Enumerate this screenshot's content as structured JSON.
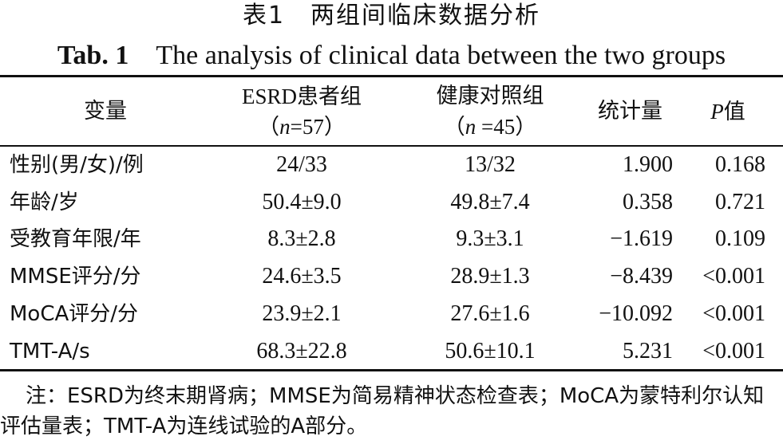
{
  "title": {
    "cn": "表1　两组间临床数据分析",
    "en_label": "Tab. 1",
    "en_text": "The analysis of clinical data between the two groups"
  },
  "headers": {
    "variable": "变量",
    "esrd_line1": "ESRD患者组",
    "esrd_n": "（n=57）",
    "control_line1": "健康对照组",
    "control_n": "（n =45）",
    "statistic": "统计量",
    "p_value": "P值"
  },
  "rows": [
    {
      "variable": "性别(男/女)/例",
      "esrd": "24/33",
      "control": "13/32",
      "statistic": "1.900",
      "p": "0.168"
    },
    {
      "variable": "年龄/岁",
      "esrd": "50.4±9.0",
      "control": "49.8±7.4",
      "statistic": "0.358",
      "p": "0.721"
    },
    {
      "variable": "受教育年限/年",
      "esrd": "8.3±2.8",
      "control": "9.3±3.1",
      "statistic": "−1.619",
      "p": "0.109"
    },
    {
      "variable": "MMSE评分/分",
      "esrd": "24.6±3.5",
      "control": "28.9±1.3",
      "statistic": "−8.439",
      "p": "<0.001"
    },
    {
      "variable": "MoCA评分/分",
      "esrd": "23.9±2.1",
      "control": "27.6±1.6",
      "statistic": "−10.092",
      "p": "<0.001"
    },
    {
      "variable": "TMT-A/s",
      "esrd": "68.3±22.8",
      "control": "50.6±10.1",
      "statistic": "5.231",
      "p": "<0.001"
    }
  ],
  "note": "注：ESRD为终末期肾病；MMSE为简易精神状态检查表；MoCA为蒙特利尔认知评估量表；TMT-A为连线试验的A部分。"
}
